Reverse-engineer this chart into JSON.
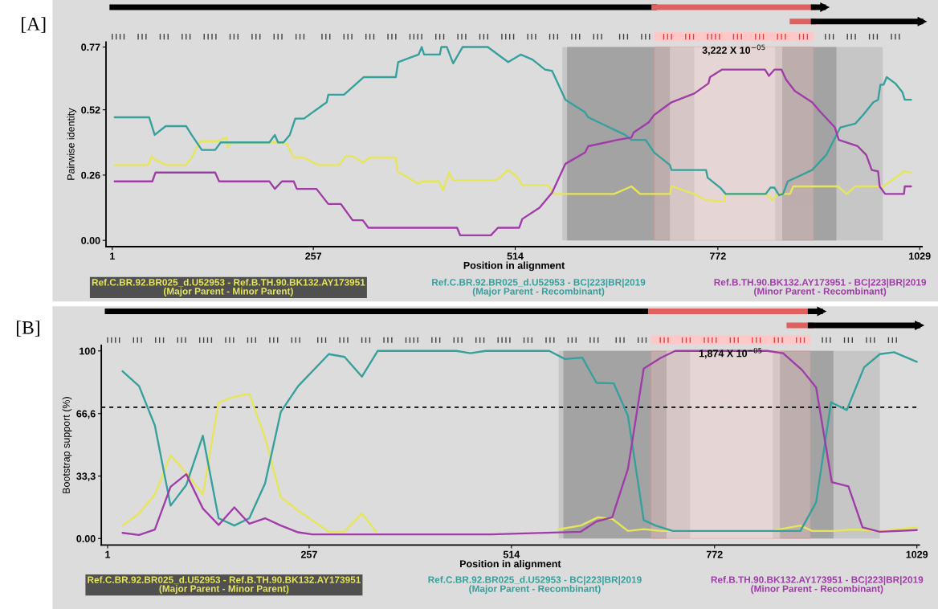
{
  "chart_data": [
    {
      "type": "line",
      "title": "[A]",
      "xlabel": "Position in alignment",
      "ylabel": "Pairwise identity",
      "xlim": [
        -7,
        1032
      ],
      "ylim": [
        -0.025,
        0.79
      ],
      "xticks": [
        1,
        257,
        514,
        772,
        1029
      ],
      "yticks": [
        {
          "value": 0,
          "label": "0.00"
        },
        0.26,
        0.52,
        0.77
      ],
      "legend": "bottom",
      "bands": [
        {
          "axis": "x",
          "from": 574,
          "to": 742,
          "color": "#c6c6c6"
        },
        {
          "axis": "x",
          "from": 580,
          "to": 711,
          "color": "#a3a3a3"
        },
        {
          "axis": "x",
          "from": 845,
          "to": 982,
          "color": "#c6c6c6"
        },
        {
          "axis": "x",
          "from": 854,
          "to": 923,
          "color": "#a3a3a3"
        },
        {
          "axis": "x",
          "from": 691,
          "to": 894,
          "label": "3,222 X 10$^{−05}$",
          "color": "#ffc8c8"
        }
      ],
      "series": [
        {
          "name": "Ref.C.BR.92.BR025_d.U52953 - Ref.B.TH.90.BK132.AY173951\n(Major Parent - Minor Parent)",
          "color": "#e6e65a",
          "x": [
            4,
            47,
            51,
            56,
            70,
            95,
            102,
            113,
            135,
            146,
            148,
            154,
            212,
            223,
            232,
            245,
            263,
            290,
            298,
            307,
            320,
            329,
            362,
            364,
            391,
            395,
            417,
            422,
            430,
            435,
            489,
            494,
            505,
            516,
            523,
            556,
            563,
            640,
            662,
            673,
            711,
            713,
            742,
            757,
            780,
            782,
            833,
            842,
            848,
            864,
            868,
            925,
            936,
            947,
            983,
            994,
            1009,
            1018
          ],
          "values": [
            0.3,
            0.3,
            0.335,
            0.32,
            0.3,
            0.3,
            0.33,
            0.395,
            0.395,
            0.41,
            0.37,
            0.39,
            0.39,
            0.385,
            0.33,
            0.33,
            0.3,
            0.3,
            0.335,
            0.335,
            0.31,
            0.33,
            0.33,
            0.275,
            0.225,
            0.235,
            0.235,
            0.2,
            0.27,
            0.24,
            0.24,
            0.25,
            0.28,
            0.255,
            0.22,
            0.22,
            0.185,
            0.185,
            0.215,
            0.185,
            0.185,
            0.215,
            0.185,
            0.16,
            0.155,
            0.185,
            0.185,
            0.16,
            0.185,
            0.185,
            0.215,
            0.215,
            0.185,
            0.215,
            0.215,
            0.24,
            0.275,
            0.27
          ]
        },
        {
          "name": "Ref.C.BR.92.BR025_d.U52953 - BC|223|BR|2019\n(Major Parent - Recombinant)",
          "color": "#35a09c",
          "x": [
            4,
            48,
            55,
            69,
            95,
            102,
            115,
            132,
            139,
            201,
            208,
            212,
            219,
            227,
            234,
            245,
            274,
            276,
            296,
            321,
            362,
            365,
            391,
            395,
            398,
            418,
            420,
            427,
            435,
            447,
            479,
            505,
            521,
            536,
            552,
            561,
            578,
            603,
            607,
            654,
            662,
            680,
            691,
            711,
            713,
            757,
            759,
            775,
            782,
            833,
            839,
            844,
            850,
            855,
            861,
            892,
            910,
            928,
            947,
            957,
            970,
            976,
            979,
            983,
            987,
            998,
            1007,
            1010,
            1018
          ],
          "values": [
            0.49,
            0.49,
            0.42,
            0.455,
            0.455,
            0.42,
            0.36,
            0.36,
            0.39,
            0.39,
            0.42,
            0.39,
            0.39,
            0.42,
            0.485,
            0.485,
            0.55,
            0.58,
            0.58,
            0.65,
            0.65,
            0.71,
            0.74,
            0.77,
            0.74,
            0.74,
            0.77,
            0.77,
            0.705,
            0.77,
            0.77,
            0.71,
            0.74,
            0.72,
            0.68,
            0.675,
            0.56,
            0.51,
            0.49,
            0.42,
            0.4,
            0.4,
            0.35,
            0.3,
            0.28,
            0.28,
            0.25,
            0.21,
            0.185,
            0.185,
            0.21,
            0.21,
            0.18,
            0.185,
            0.235,
            0.28,
            0.34,
            0.45,
            0.465,
            0.5,
            0.55,
            0.56,
            0.62,
            0.62,
            0.65,
            0.625,
            0.59,
            0.56,
            0.56
          ]
        },
        {
          "name": "Ref.B.TH.90.BK132.AY173951 - BC|223|BR|2019\n(Minor Parent - Recombinant)",
          "color": "#a03ca8",
          "x": [
            4,
            52,
            56,
            132,
            137,
            201,
            208,
            217,
            232,
            236,
            261,
            276,
            292,
            307,
            320,
            327,
            440,
            444,
            483,
            492,
            519,
            523,
            545,
            561,
            578,
            603,
            607,
            644,
            662,
            665,
            684,
            691,
            713,
            742,
            760,
            762,
            777,
            832,
            837,
            844,
            853,
            859,
            870,
            892,
            903,
            921,
            926,
            950,
            961,
            968,
            976,
            978,
            985,
            1009,
            1010,
            1018
          ],
          "values": [
            0.235,
            0.235,
            0.27,
            0.27,
            0.235,
            0.235,
            0.205,
            0.235,
            0.235,
            0.205,
            0.205,
            0.145,
            0.145,
            0.08,
            0.08,
            0.05,
            0.05,
            0.02,
            0.02,
            0.05,
            0.05,
            0.085,
            0.13,
            0.19,
            0.305,
            0.35,
            0.375,
            0.4,
            0.41,
            0.43,
            0.47,
            0.5,
            0.55,
            0.585,
            0.625,
            0.65,
            0.68,
            0.68,
            0.655,
            0.68,
            0.68,
            0.64,
            0.595,
            0.55,
            0.51,
            0.45,
            0.4,
            0.375,
            0.34,
            0.28,
            0.275,
            0.215,
            0.185,
            0.185,
            0.215,
            0.215
          ]
        }
      ]
    },
    {
      "type": "line",
      "title": "[B]",
      "xlabel": "Position in alignment",
      "ylabel": "Bootstrap support (%)",
      "xlim": [
        -7,
        1032
      ],
      "ylim": [
        -3.5,
        103
      ],
      "xticks": [
        1,
        257,
        514,
        772,
        1029
      ],
      "yticks": [
        {
          "value": 0,
          "label": "0.00"
        },
        {
          "value": 33.3,
          "label": "33,3"
        },
        {
          "value": 66.6,
          "label": "66,6"
        },
        100
      ],
      "legend": "bottom",
      "ref_lines": [
        {
          "axis": "y",
          "value": 70,
          "color": "#000000",
          "line_style": "dashed"
        }
      ],
      "bands": [
        {
          "axis": "x",
          "from": 574,
          "to": 741,
          "color": "#c6c6c6"
        },
        {
          "axis": "x",
          "from": 580,
          "to": 711,
          "color": "#a3a3a3"
        },
        {
          "axis": "x",
          "from": 846,
          "to": 982,
          "color": "#c6c6c6"
        },
        {
          "axis": "x",
          "from": 855,
          "to": 923,
          "color": "#a3a3a3"
        },
        {
          "axis": "x",
          "from": 691,
          "to": 894,
          "label": "1,874 X 10$^{−05}$",
          "color": "#ffc8c8"
        }
      ],
      "series": [
        {
          "name": "Ref.C.BR.92.BR025_d.U52953 - Ref.B.TH.90.BK132.AY173951\n(Major Parent - Minor Parent)",
          "color": "#e6e65a",
          "x": [
            20,
            41,
            61,
            81,
            101,
            122,
            142,
            162,
            181,
            201,
            221,
            243,
            282,
            302,
            324,
            342,
            450,
            573,
            602,
            624,
            642,
            662,
            682,
            704,
            843,
            881,
            896,
            923,
            949,
            982,
            1029
          ],
          "values": [
            6.9,
            13.4,
            23.5,
            44.4,
            35,
            23.5,
            72.6,
            75.5,
            77.2,
            53.8,
            22.1,
            14.9,
            3.6,
            3.6,
            13.4,
            3.6,
            null,
            4.8,
            6.9,
            11.3,
            10.5,
            4,
            5,
            4,
            4,
            6.9,
            4,
            4,
            4.8,
            4,
            5.9
          ]
        },
        {
          "name": "Ref.C.BR.92.BR025_d.U52953 - BC|223|BR|2019\n(Major Parent - Recombinant)",
          "color": "#35a09c",
          "x": [
            20,
            41,
            61,
            81,
            101,
            122,
            142,
            162,
            181,
            201,
            221,
            243,
            282,
            302,
            324,
            344,
            444,
            462,
            481,
            562,
            582,
            604,
            622,
            644,
            662,
            682,
            697,
            719,
            881,
            901,
            920,
            940,
            962,
            982,
            1000,
            1029
          ],
          "values": [
            89.2,
            81.2,
            60.3,
            17.5,
            28.6,
            54.8,
            10.8,
            6.9,
            10.8,
            29.3,
            67.5,
            81.2,
            98.3,
            96.8,
            86.3,
            100,
            100,
            98.8,
            100,
            100,
            95.7,
            96.4,
            83,
            82.7,
            65.4,
            9.8,
            6.9,
            4,
            4,
            19.2,
            72.6,
            68.5,
            91.3,
            98.3,
            99.3,
            94.2
          ]
        },
        {
          "name": "Ref.B.TH.90.BK132.AY173951 - BC|223|BR|2019\n(Minor Parent - Recombinant)",
          "color": "#a03ca8",
          "x": [
            20,
            41,
            61,
            81,
            101,
            122,
            142,
            162,
            181,
            201,
            221,
            243,
            261,
            488,
            602,
            622,
            642,
            662,
            682,
            704,
            722,
            839,
            859,
            883,
            901,
            921,
            942,
            960,
            982,
            1029
          ],
          "values": [
            3,
            1.9,
            4.8,
            27.6,
            34.3,
            16,
            7.2,
            16.6,
            7.9,
            10.8,
            6.9,
            3.3,
            2.2,
            2.2,
            3.6,
            9.1,
            11.3,
            37.2,
            90.6,
            96.4,
            100,
            100,
            98.8,
            89.9,
            80.5,
            30,
            27.8,
            5.9,
            3.6,
            4.5
          ]
        }
      ]
    }
  ]
}
